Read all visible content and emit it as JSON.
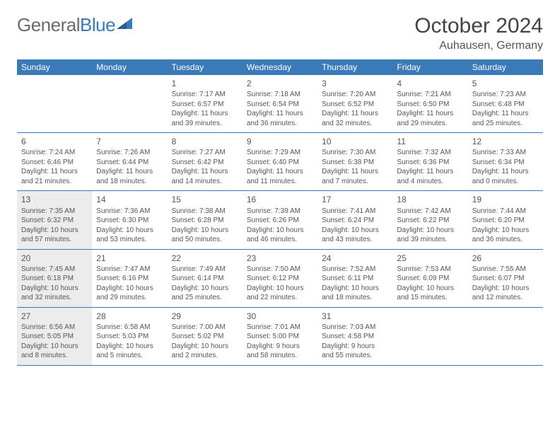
{
  "brand": {
    "part1": "General",
    "part2": "Blue"
  },
  "title": "October 2024",
  "location": "Auhausen, Germany",
  "colors": {
    "header_bg": "#3b7ab8",
    "shade_bg": "#ececec",
    "rule": "#3b7ab8",
    "text": "#555555"
  },
  "day_headers": [
    "Sunday",
    "Monday",
    "Tuesday",
    "Wednesday",
    "Thursday",
    "Friday",
    "Saturday"
  ],
  "weeks": [
    [
      {
        "blank": true
      },
      {
        "blank": true
      },
      {
        "num": "1",
        "sunrise": "7:17 AM",
        "sunset": "6:57 PM",
        "daylight": "11 hours and 39 minutes."
      },
      {
        "num": "2",
        "sunrise": "7:18 AM",
        "sunset": "6:54 PM",
        "daylight": "11 hours and 36 minutes."
      },
      {
        "num": "3",
        "sunrise": "7:20 AM",
        "sunset": "6:52 PM",
        "daylight": "11 hours and 32 minutes."
      },
      {
        "num": "4",
        "sunrise": "7:21 AM",
        "sunset": "6:50 PM",
        "daylight": "11 hours and 29 minutes."
      },
      {
        "num": "5",
        "sunrise": "7:23 AM",
        "sunset": "6:48 PM",
        "daylight": "11 hours and 25 minutes."
      }
    ],
    [
      {
        "num": "6",
        "sunrise": "7:24 AM",
        "sunset": "6:46 PM",
        "daylight": "11 hours and 21 minutes."
      },
      {
        "num": "7",
        "sunrise": "7:26 AM",
        "sunset": "6:44 PM",
        "daylight": "11 hours and 18 minutes."
      },
      {
        "num": "8",
        "sunrise": "7:27 AM",
        "sunset": "6:42 PM",
        "daylight": "11 hours and 14 minutes."
      },
      {
        "num": "9",
        "sunrise": "7:29 AM",
        "sunset": "6:40 PM",
        "daylight": "11 hours and 11 minutes."
      },
      {
        "num": "10",
        "sunrise": "7:30 AM",
        "sunset": "6:38 PM",
        "daylight": "11 hours and 7 minutes."
      },
      {
        "num": "11",
        "sunrise": "7:32 AM",
        "sunset": "6:36 PM",
        "daylight": "11 hours and 4 minutes."
      },
      {
        "num": "12",
        "sunrise": "7:33 AM",
        "sunset": "6:34 PM",
        "daylight": "11 hours and 0 minutes."
      }
    ],
    [
      {
        "num": "13",
        "shade": true,
        "sunrise": "7:35 AM",
        "sunset": "6:32 PM",
        "daylight": "10 hours and 57 minutes."
      },
      {
        "num": "14",
        "sunrise": "7:36 AM",
        "sunset": "6:30 PM",
        "daylight": "10 hours and 53 minutes."
      },
      {
        "num": "15",
        "sunrise": "7:38 AM",
        "sunset": "6:28 PM",
        "daylight": "10 hours and 50 minutes."
      },
      {
        "num": "16",
        "sunrise": "7:39 AM",
        "sunset": "6:26 PM",
        "daylight": "10 hours and 46 minutes."
      },
      {
        "num": "17",
        "sunrise": "7:41 AM",
        "sunset": "6:24 PM",
        "daylight": "10 hours and 43 minutes."
      },
      {
        "num": "18",
        "sunrise": "7:42 AM",
        "sunset": "6:22 PM",
        "daylight": "10 hours and 39 minutes."
      },
      {
        "num": "19",
        "sunrise": "7:44 AM",
        "sunset": "6:20 PM",
        "daylight": "10 hours and 36 minutes."
      }
    ],
    [
      {
        "num": "20",
        "shade": true,
        "sunrise": "7:45 AM",
        "sunset": "6:18 PM",
        "daylight": "10 hours and 32 minutes."
      },
      {
        "num": "21",
        "sunrise": "7:47 AM",
        "sunset": "6:16 PM",
        "daylight": "10 hours and 29 minutes."
      },
      {
        "num": "22",
        "sunrise": "7:49 AM",
        "sunset": "6:14 PM",
        "daylight": "10 hours and 25 minutes."
      },
      {
        "num": "23",
        "sunrise": "7:50 AM",
        "sunset": "6:12 PM",
        "daylight": "10 hours and 22 minutes."
      },
      {
        "num": "24",
        "sunrise": "7:52 AM",
        "sunset": "6:11 PM",
        "daylight": "10 hours and 18 minutes."
      },
      {
        "num": "25",
        "sunrise": "7:53 AM",
        "sunset": "6:09 PM",
        "daylight": "10 hours and 15 minutes."
      },
      {
        "num": "26",
        "sunrise": "7:55 AM",
        "sunset": "6:07 PM",
        "daylight": "10 hours and 12 minutes."
      }
    ],
    [
      {
        "num": "27",
        "shade": true,
        "sunrise": "6:56 AM",
        "sunset": "5:05 PM",
        "daylight": "10 hours and 8 minutes."
      },
      {
        "num": "28",
        "sunrise": "6:58 AM",
        "sunset": "5:03 PM",
        "daylight": "10 hours and 5 minutes."
      },
      {
        "num": "29",
        "sunrise": "7:00 AM",
        "sunset": "5:02 PM",
        "daylight": "10 hours and 2 minutes."
      },
      {
        "num": "30",
        "sunrise": "7:01 AM",
        "sunset": "5:00 PM",
        "daylight": "9 hours and 58 minutes."
      },
      {
        "num": "31",
        "sunrise": "7:03 AM",
        "sunset": "4:58 PM",
        "daylight": "9 hours and 55 minutes."
      },
      {
        "blank": true
      },
      {
        "blank": true
      }
    ]
  ],
  "labels": {
    "sunrise": "Sunrise:",
    "sunset": "Sunset:",
    "daylight": "Daylight:"
  }
}
